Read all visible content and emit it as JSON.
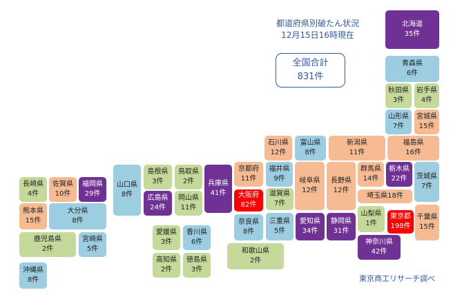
{
  "header": {
    "title_line1": "都道府県別破たん状況",
    "title_line2": "12月15日16時現在"
  },
  "total": {
    "label": "全国合計",
    "value": "831件"
  },
  "credit": "東京商工リサーチ調べ",
  "legend_colors": {
    "green": "#c5d99a",
    "blue": "#9ccde1",
    "orange": "#f6bb92",
    "purple": "#6f3193",
    "red": "#ff0000"
  },
  "prefectures": {
    "hokkaido": {
      "name": "北海道",
      "count": "35件"
    },
    "aomori": {
      "name": "青森県",
      "count": "6件"
    },
    "akita": {
      "name": "秋田県",
      "count": "3件"
    },
    "iwate": {
      "name": "岩手県",
      "count": "4件"
    },
    "yamagata": {
      "name": "山形県",
      "count": "7件"
    },
    "miyagi": {
      "name": "宮城県",
      "count": "15件"
    },
    "fukushima": {
      "name": "福島県",
      "count": "16件"
    },
    "niigata": {
      "name": "新潟県",
      "count": "11件"
    },
    "ishikawa": {
      "name": "石川県",
      "count": "12件"
    },
    "toyama": {
      "name": "富山県",
      "count": "8件"
    },
    "tochigi": {
      "name": "栃木県",
      "count": "22件"
    },
    "ibaraki": {
      "name": "茨城県",
      "count": "7件"
    },
    "gunma": {
      "name": "群馬県",
      "count": "14件"
    },
    "nagano": {
      "name": "長野県",
      "count": "12件"
    },
    "gifu": {
      "name": "岐阜県",
      "count": "12件"
    },
    "fukui": {
      "name": "福井県",
      "count": "9件"
    },
    "kyoto": {
      "name": "京都府",
      "count": "11件"
    },
    "saitama": {
      "name": "埼玉県",
      "count": "18件"
    },
    "yamanashi": {
      "name": "山梨県",
      "count": "1件"
    },
    "tokyo": {
      "name": "東京都",
      "count": "198件"
    },
    "chiba": {
      "name": "千葉県",
      "count": "15件"
    },
    "kanagawa": {
      "name": "神奈川県",
      "count": "42件"
    },
    "shizuoka": {
      "name": "静岡県",
      "count": "31件"
    },
    "aichi": {
      "name": "愛知県",
      "count": "34件"
    },
    "mie": {
      "name": "三重県",
      "count": "5件"
    },
    "shiga": {
      "name": "滋賀県",
      "count": "7件"
    },
    "osaka": {
      "name": "大阪府",
      "count": "82件"
    },
    "nara": {
      "name": "奈良県",
      "count": "8件"
    },
    "wakayama": {
      "name": "和歌山県",
      "count": "2件"
    },
    "hyogo": {
      "name": "兵庫県",
      "count": "41件"
    },
    "tottori": {
      "name": "鳥取県",
      "count": "2件"
    },
    "shimane": {
      "name": "島根県",
      "count": "3件"
    },
    "okayama": {
      "name": "岡山県",
      "count": "11件"
    },
    "hiroshima": {
      "name": "広島県",
      "count": "24件"
    },
    "yamaguchi": {
      "name": "山口県",
      "count": "8件"
    },
    "kagawa": {
      "name": "香川県",
      "count": "6件"
    },
    "ehime": {
      "name": "愛媛県",
      "count": "3件"
    },
    "tokushima": {
      "name": "徳島県",
      "count": "3件"
    },
    "kochi": {
      "name": "高知県",
      "count": "2件"
    },
    "fukuoka": {
      "name": "福岡県",
      "count": "29件"
    },
    "saga": {
      "name": "佐賀県",
      "count": "10件"
    },
    "nagasaki": {
      "name": "長崎県",
      "count": "4件"
    },
    "oita": {
      "name": "大分県",
      "count": "8件"
    },
    "kumamoto": {
      "name": "熊本県",
      "count": "15件"
    },
    "miyazaki": {
      "name": "宮崎県",
      "count": "5件"
    },
    "kagoshima": {
      "name": "鹿児島県",
      "count": "2件"
    },
    "okinawa": {
      "name": "沖縄県",
      "count": "8件"
    }
  }
}
